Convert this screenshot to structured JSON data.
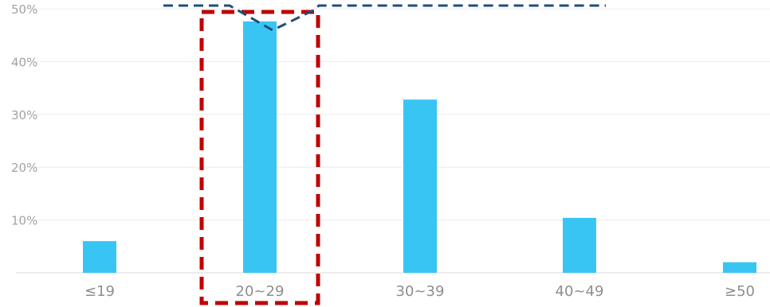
{
  "chart_data": {
    "type": "bar",
    "categories": [
      "≤19",
      "20~29",
      "30~39",
      "40~49",
      "≥50"
    ],
    "values": [
      6,
      47.6,
      32.8,
      10.4,
      2
    ],
    "yticks": [
      "10%",
      "20%",
      "30%",
      "40%",
      "50%"
    ],
    "ylim": [
      0,
      50
    ],
    "grid": true,
    "title": "",
    "xlabel": "",
    "ylabel": "",
    "highlight_category": "20~29",
    "colors": {
      "bar": "#38c5f4",
      "grid": "#ececec",
      "highlight_box": "#c00000",
      "callout_line": "#1f4e79"
    }
  }
}
